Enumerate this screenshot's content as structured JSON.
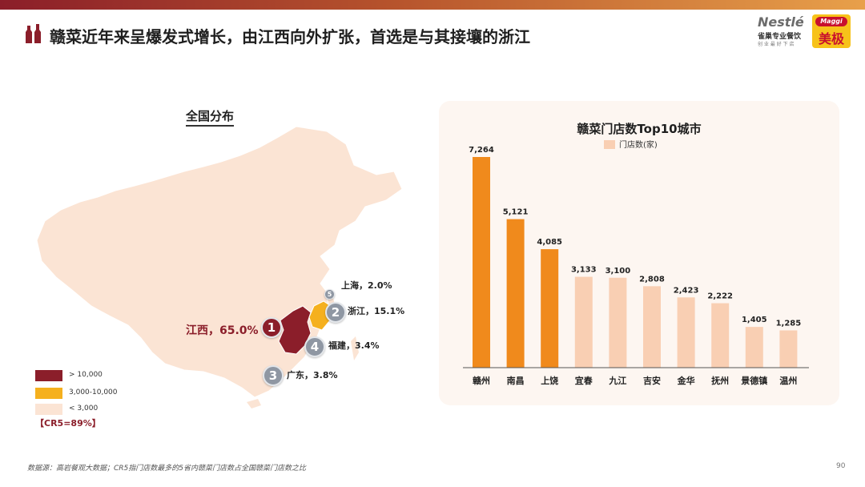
{
  "header": {
    "title": "赣菜近年来呈爆发式增长，由江西向外扩张，首选是与其接壤的浙江",
    "logo_nestle": "Nestlé",
    "logo_nestle_sub": "雀巢专业餐饮",
    "logo_nestle_tag": "创 业 最 好 下 店",
    "logo_maggi": "Maggi",
    "logo_maggi_cn": "美极"
  },
  "map": {
    "title": "全国分布",
    "annotations": [
      {
        "rank": "1",
        "label": "江西，65.0%"
      },
      {
        "rank": "2",
        "label": "浙江，15.1%"
      },
      {
        "rank": "3",
        "label": "广东，3.8%"
      },
      {
        "rank": "4",
        "label": "福建，3.4%"
      },
      {
        "rank": "5",
        "label": "上海，2.0%"
      }
    ],
    "legend": [
      {
        "label": "> 10,000",
        "color": "#8b1e2a"
      },
      {
        "label": "3,000-10,000",
        "color": "#f5b01e"
      },
      {
        "label": "< 3,000",
        "color": "#fbe4d4"
      }
    ],
    "cr5": "【CR5=89%】"
  },
  "chart_data": {
    "type": "bar",
    "title": "赣菜门店数Top10城市",
    "legend_label": "门店数(家)",
    "categories": [
      "赣州",
      "南昌",
      "上饶",
      "宜春",
      "九江",
      "吉安",
      "金华",
      "抚州",
      "景德镇",
      "温州"
    ],
    "values": [
      7264,
      5121,
      4085,
      3133,
      3100,
      2808,
      2423,
      2222,
      1405,
      1285
    ],
    "value_labels": [
      "7,264",
      "5,121",
      "4,085",
      "3,133",
      "3,100",
      "2,808",
      "2,423",
      "2,222",
      "1,405",
      "1,285"
    ],
    "highlight_count": 3,
    "highlight_color": "#f08a1c",
    "base_color": "#f9cfb3",
    "ylim": [
      0,
      7264
    ],
    "grid": false,
    "legend_position": "top-center"
  },
  "footer": {
    "source": "数据源：高岩餐观大数据；CR5指门店数最多的5省内赣菜门店数占全国赣菜门店数之比",
    "page": "90"
  }
}
